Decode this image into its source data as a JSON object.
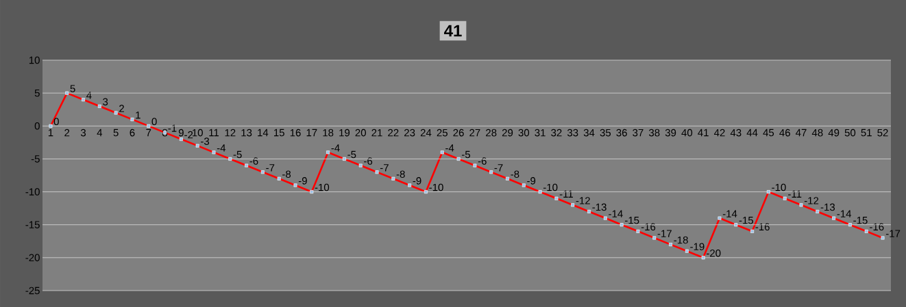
{
  "chart_data": {
    "type": "line",
    "title": "41",
    "categories": [
      "1",
      "2",
      "3",
      "4",
      "5",
      "6",
      "7",
      "8",
      "9",
      "10",
      "11",
      "12",
      "13",
      "14",
      "15",
      "16",
      "17",
      "18",
      "19",
      "20",
      "21",
      "22",
      "23",
      "24",
      "25",
      "26",
      "27",
      "28",
      "29",
      "30",
      "31",
      "32",
      "33",
      "34",
      "35",
      "36",
      "37",
      "38",
      "39",
      "40",
      "41",
      "42",
      "43",
      "44",
      "45",
      "46",
      "47",
      "48",
      "49",
      "50",
      "51",
      "52"
    ],
    "series": [
      {
        "color": "#ff0000",
        "values": [
          0,
          5,
          4,
          3,
          2,
          1,
          0,
          -1,
          -2,
          -3,
          -4,
          -5,
          -6,
          -7,
          -8,
          -9,
          -10,
          -4,
          -5,
          -6,
          -7,
          -8,
          -9,
          -10,
          -4,
          -5,
          -6,
          -7,
          -8,
          -9,
          -10,
          -11,
          -12,
          -13,
          -14,
          -15,
          -16,
          -17,
          -18,
          -19,
          -20,
          -14,
          -15,
          -16,
          -10,
          -11,
          -12,
          -13,
          -14,
          -15,
          -16,
          -17
        ]
      }
    ],
    "ylim": [
      -25,
      10
    ],
    "yticks": [
      -25,
      -20,
      -15,
      -10,
      -5,
      0,
      5,
      10
    ],
    "grid": "y",
    "marker": "square",
    "line_style": "solid",
    "data_labels": true
  }
}
